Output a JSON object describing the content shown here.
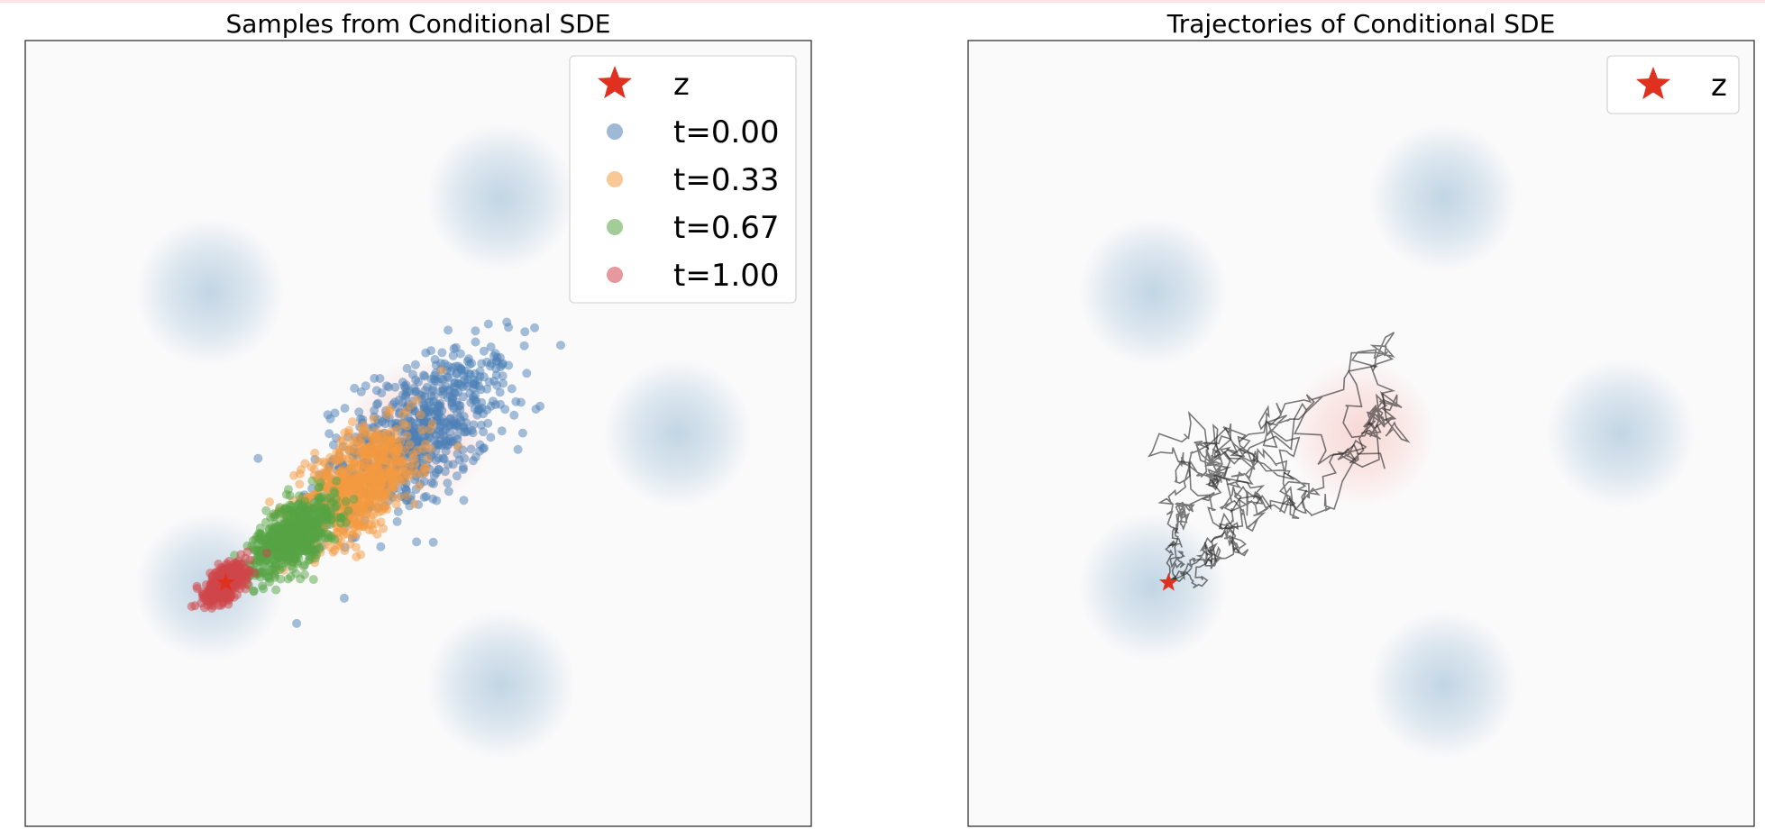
{
  "chart_data": [
    {
      "type": "scatter",
      "title": "Samples from Conditional SDE",
      "xlabel": "",
      "ylabel": "",
      "xlim": [
        -5,
        5
      ],
      "ylim": [
        -5,
        5
      ],
      "grid": false,
      "axis_ticks": false,
      "legend_position": "top-right",
      "target": {
        "name": "z",
        "x": -2.45,
        "y": -1.9,
        "color": "#e03020",
        "marker": "star"
      },
      "background_density": {
        "modes": [
          {
            "x": -2.65,
            "y": 1.8,
            "kind": "data"
          },
          {
            "x": 1.05,
            "y": 3.0,
            "kind": "data"
          },
          {
            "x": 3.3,
            "y": 0.0,
            "kind": "data"
          },
          {
            "x": 1.05,
            "y": -3.2,
            "kind": "data"
          },
          {
            "x": -2.65,
            "y": -1.95,
            "kind": "data"
          },
          {
            "x": 0.0,
            "y": 0.0,
            "kind": "prior"
          }
        ],
        "data_color": "#b8cfe0",
        "prior_color": "#f6c9c4"
      },
      "series": [
        {
          "name": "t=0.00",
          "color": "#4c7fb5",
          "center": [
            0.0,
            0.0
          ],
          "std": 0.7,
          "n": 700
        },
        {
          "name": "t=0.33",
          "color": "#f39a40",
          "center": [
            -0.75,
            -0.65
          ],
          "std": 0.5,
          "n": 700
        },
        {
          "name": "t=0.67",
          "color": "#55a344",
          "center": [
            -1.6,
            -1.3
          ],
          "std": 0.32,
          "n": 700
        },
        {
          "name": "t=1.00",
          "color": "#d0464a",
          "center": [
            -2.45,
            -1.9
          ],
          "std": 0.16,
          "n": 450
        }
      ]
    },
    {
      "type": "line",
      "title": "Trajectories of Conditional SDE",
      "xlabel": "",
      "ylabel": "",
      "xlim": [
        -5,
        5
      ],
      "ylim": [
        -5,
        5
      ],
      "grid": false,
      "axis_ticks": false,
      "legend_position": "top-right",
      "target": {
        "name": "z",
        "x": -2.45,
        "y": -1.9,
        "color": "#e03020",
        "marker": "star"
      },
      "trajectory_color": "#222222",
      "trajectory_starts": [
        {
          "x": 0.15,
          "y": 0.8
        },
        {
          "x": 0.3,
          "y": -0.45
        },
        {
          "x": -0.7,
          "y": 0.3
        },
        {
          "x": 0.0,
          "y": 0.0
        },
        {
          "x": 0.4,
          "y": 0.05
        }
      ]
    }
  ]
}
